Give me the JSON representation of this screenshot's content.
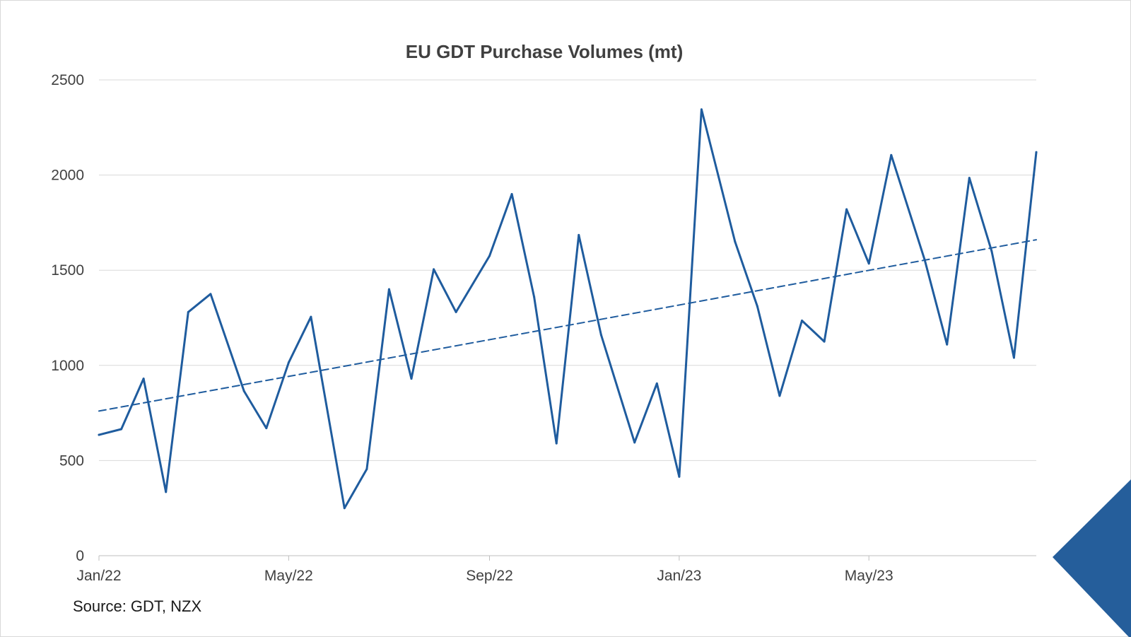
{
  "chart_data": {
    "type": "line",
    "title": "EU GDT Purchase Volumes (mt)",
    "xlabel": "",
    "ylabel": "",
    "ylim": [
      0,
      2500
    ],
    "yticks": [
      0,
      500,
      1000,
      1500,
      2000,
      2500
    ],
    "xlim": [
      "2022-01-04",
      "2023-08-15"
    ],
    "xticks": [
      {
        "date": "2022-01-04",
        "label": "Jan/22"
      },
      {
        "date": "2022-05-03",
        "label": "May/22"
      },
      {
        "date": "2022-09-06",
        "label": "Sep/22"
      },
      {
        "date": "2023-01-03",
        "label": "Jan/23"
      },
      {
        "date": "2023-05-02",
        "label": "May/23"
      }
    ],
    "grid": "horizontal",
    "legend": "none",
    "series": [
      {
        "style": "solid",
        "color": "#1f5c9e",
        "x": [
          "2022-01-04",
          "2022-01-18",
          "2022-02-01",
          "2022-02-15",
          "2022-03-01",
          "2022-03-15",
          "2022-04-05",
          "2022-04-19",
          "2022-05-03",
          "2022-05-17",
          "2022-06-07",
          "2022-06-21",
          "2022-07-05",
          "2022-07-19",
          "2022-08-02",
          "2022-08-16",
          "2022-09-06",
          "2022-09-20",
          "2022-10-04",
          "2022-10-18",
          "2022-11-01",
          "2022-11-15",
          "2022-12-06",
          "2022-12-20",
          "2023-01-03",
          "2023-01-17",
          "2023-02-07",
          "2023-02-21",
          "2023-03-07",
          "2023-03-21",
          "2023-04-04",
          "2023-04-18",
          "2023-05-02",
          "2023-05-16",
          "2023-06-06",
          "2023-06-20",
          "2023-07-04",
          "2023-07-18",
          "2023-08-01",
          "2023-08-15"
        ],
        "values": [
          635,
          665,
          930,
          335,
          1280,
          1375,
          865,
          670,
          1015,
          1255,
          250,
          455,
          1400,
          930,
          1505,
          1280,
          1575,
          1900,
          1360,
          590,
          1685,
          1160,
          595,
          905,
          415,
          2345,
          1650,
          1310,
          840,
          1235,
          1125,
          1820,
          1535,
          2105,
          1555,
          1110,
          1985,
          1600,
          1040,
          2120
        ]
      },
      {
        "style": "dashed",
        "color": "#1f5c9e",
        "x": [
          "2022-01-04",
          "2023-08-15"
        ],
        "values": [
          760,
          1660
        ]
      }
    ],
    "annotations": [
      "Source: GDT, NZX"
    ]
  },
  "source_text": "Source: GDT, NZX",
  "decoration": {
    "corner_color": "#255e9b"
  }
}
